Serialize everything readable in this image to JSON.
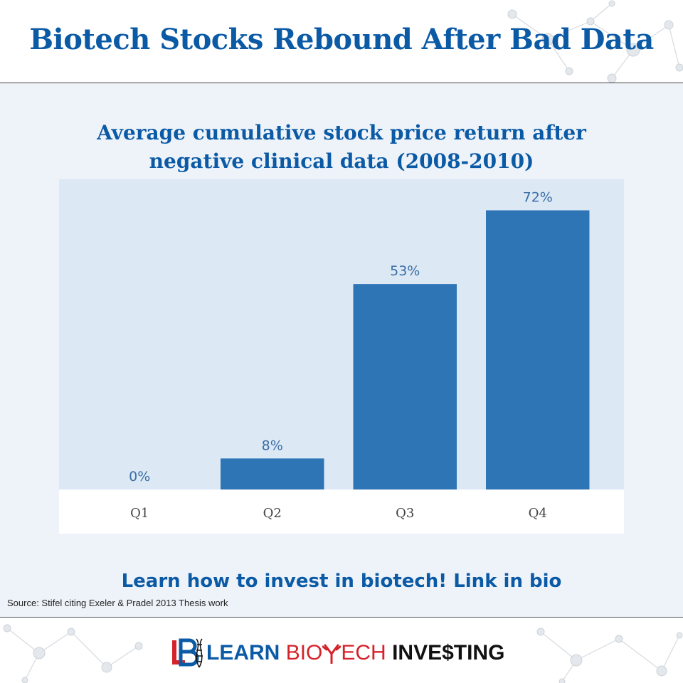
{
  "header": {
    "title": "Biotech Stocks Rebound After Bad Data"
  },
  "chart_data": {
    "type": "bar",
    "title_line1": "Average cumulative stock price return after",
    "title_line2": "negative clinical data (2008-2010)",
    "categories": [
      "Q1",
      "Q2",
      "Q3",
      "Q4"
    ],
    "values": [
      0,
      8,
      53,
      72
    ],
    "data_labels": [
      "0%",
      "8%",
      "53%",
      "72%"
    ],
    "xlabel": "",
    "ylabel": "",
    "ylim": [
      0,
      80
    ],
    "grid": false,
    "legend": "none",
    "bar_color": "#2e75b6",
    "plot_background": "#dde8f5",
    "label_color": "#3a6ea5"
  },
  "cta": {
    "text": "Learn how to invest in biotech! Link in bio"
  },
  "source": {
    "text": "Source: Stifel citing Exeler & Pradel 2013 Thesis work"
  },
  "footer": {
    "logo": {
      "learn": "LEARN",
      "bio": "BIO",
      "tech": "ECH",
      "invest": "INVE$TING",
      "colors": {
        "blue": "#0b5aa6",
        "red": "#d4232a",
        "black": "#111111"
      }
    }
  }
}
